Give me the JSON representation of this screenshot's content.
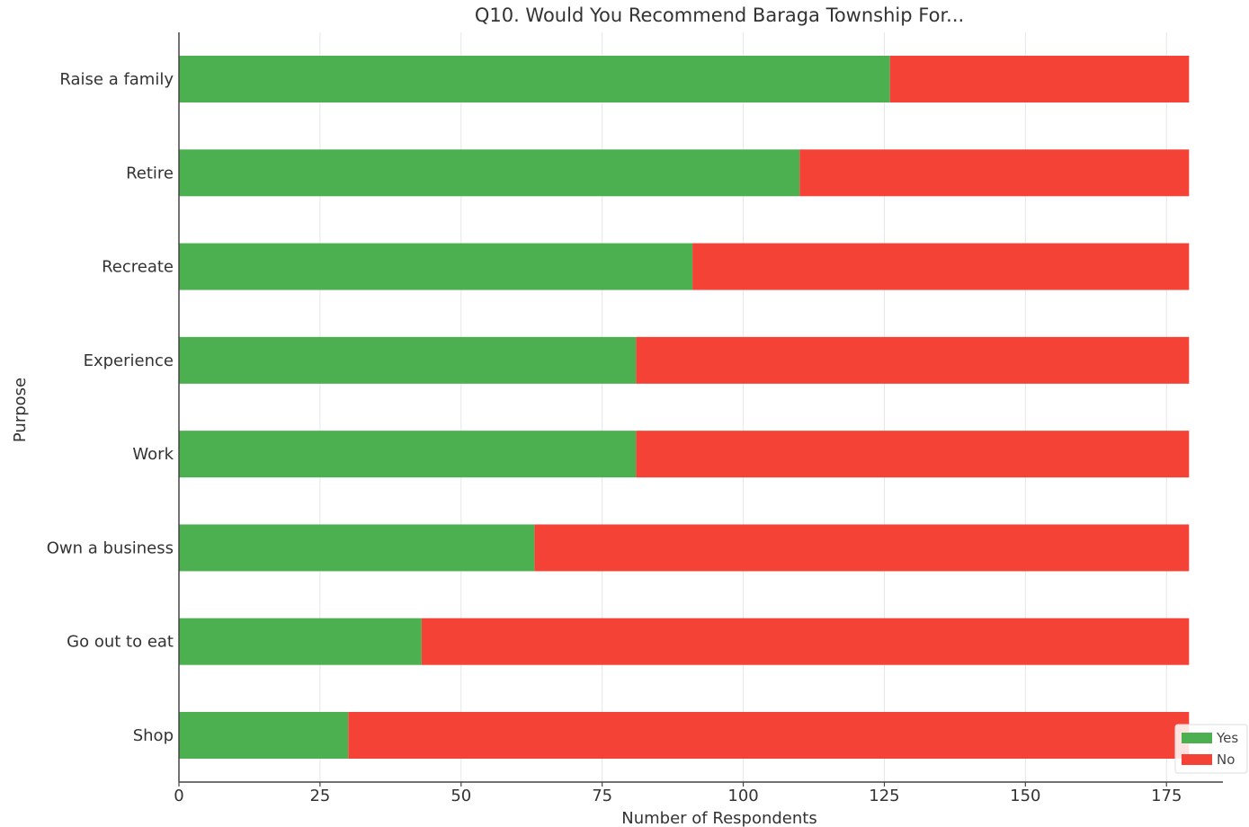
{
  "chart_data": {
    "type": "bar",
    "orientation": "horizontal",
    "stacked": true,
    "title": "Q10. Would You Recommend Baraga Township For...",
    "xlabel": "Number of Respondents",
    "ylabel": "Purpose",
    "categories": [
      "Raise a family",
      "Retire",
      "Recreate",
      "Experience",
      "Work",
      "Own a business",
      "Go out to eat",
      "Shop"
    ],
    "series": [
      {
        "name": "Yes",
        "color": "#4caf50",
        "values": [
          126,
          110,
          91,
          81,
          81,
          63,
          43,
          30
        ]
      },
      {
        "name": "No",
        "color": "#f44336",
        "values": [
          53,
          69,
          88,
          98,
          98,
          116,
          136,
          149
        ]
      }
    ],
    "xlim": [
      0,
      185
    ],
    "xticks": [
      0,
      25,
      50,
      75,
      100,
      125,
      150,
      175
    ],
    "grid": true,
    "legend_position": "bottom-right"
  }
}
